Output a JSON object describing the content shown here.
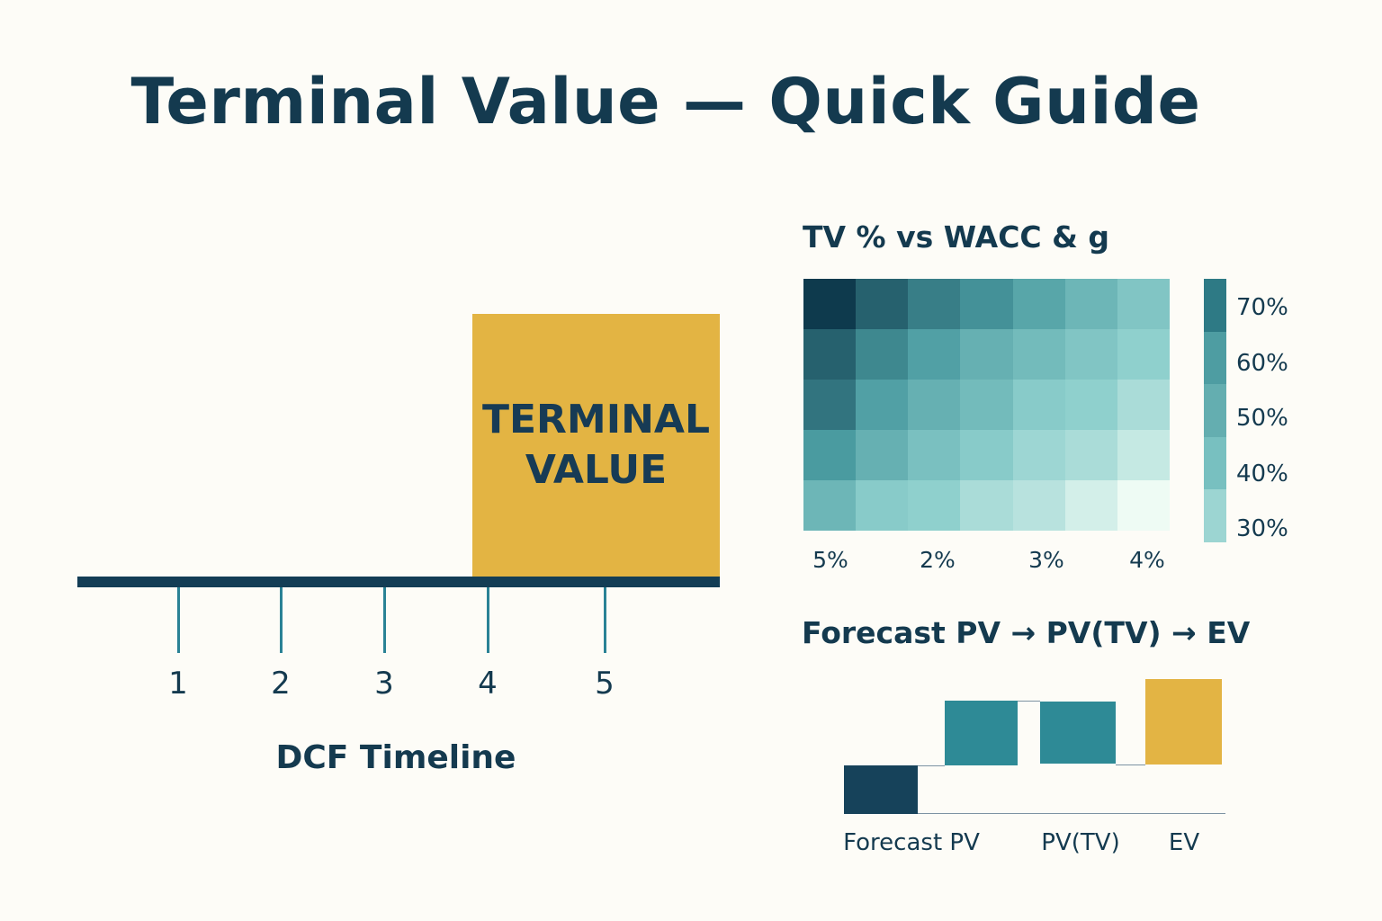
{
  "title": "Terminal Value — Quick Guide",
  "timeline": {
    "caption": "DCF Timeline",
    "ticks": [
      "1",
      "2",
      "3",
      "4",
      "5"
    ],
    "terminal_box": "TERMINAL\nVALUE",
    "colors": {
      "bar": "#133d55",
      "tick": "#2a8295",
      "box": "#e3b443"
    }
  },
  "chart_data": [
    {
      "type": "heatmap",
      "title": "TV % vs WACC & g",
      "x_tick_labels": [
        "5%",
        "2%",
        "3%",
        "4%"
      ],
      "values_percent": [
        [
          80,
          72,
          66,
          62,
          56,
          50,
          44
        ],
        [
          72,
          64,
          58,
          52,
          48,
          44,
          40
        ],
        [
          68,
          58,
          52,
          48,
          42,
          40,
          36
        ],
        [
          60,
          52,
          46,
          42,
          38,
          36,
          32
        ],
        [
          50,
          42,
          40,
          36,
          34,
          30,
          26
        ]
      ],
      "legend": {
        "labels": [
          "70%",
          "60%",
          "50%",
          "40%",
          "30%"
        ],
        "colors": [
          "#2e7a85",
          "#4e9da2",
          "#64aeb0",
          "#78c0c0",
          "#9cd5d2"
        ]
      }
    },
    {
      "type": "bar",
      "subtype": "waterfall",
      "title": "Forecast PV → PV(TV) → EV",
      "categories": [
        "Forecast PV",
        "PV(TV)",
        "EV"
      ],
      "colors": {
        "forecast": "#16425a",
        "pv_tv": "#2e8a96",
        "ev": "#e3b444"
      }
    }
  ]
}
